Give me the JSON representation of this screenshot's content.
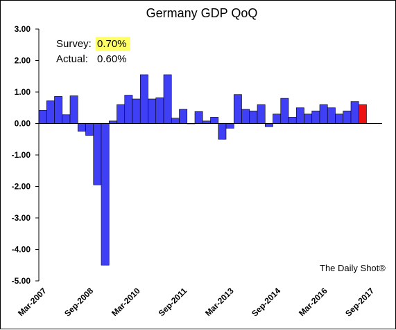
{
  "chart_data": {
    "type": "bar",
    "title": "Germany GDP QoQ",
    "ylim": [
      -5.0,
      3.0
    ],
    "yticks": [
      "3.00",
      "2.00",
      "1.00",
      "0.00",
      "-1.00",
      "-2.00",
      "-3.00",
      "-4.00",
      "-5.00"
    ],
    "ytick_values": [
      3,
      2,
      1,
      0,
      -1,
      -2,
      -3,
      -4,
      -5
    ],
    "xticks": [
      "Mar-2007",
      "Sep-2008",
      "Mar-2010",
      "Sep-2011",
      "Mar-2013",
      "Sep-2014",
      "Mar-2016",
      "Sep-2017"
    ],
    "xtick_quarter_index": [
      0,
      6,
      12,
      18,
      24,
      30,
      36,
      42
    ],
    "quarters_total": 44,
    "series": [
      {
        "values": [
          0.42,
          0.72,
          0.86,
          0.28,
          0.88,
          -0.25,
          -0.38,
          -1.95,
          -4.5,
          0.08,
          0.6,
          0.9,
          0.78,
          1.55,
          0.78,
          0.82,
          1.55,
          0.17,
          0.45,
          0.0,
          0.38,
          0.08,
          0.2,
          -0.5,
          -0.15,
          0.92,
          0.45,
          0.4,
          0.6,
          -0.1,
          0.3,
          0.8,
          0.2,
          0.5,
          0.3,
          0.4,
          0.6,
          0.5,
          0.3,
          0.4,
          0.7,
          0.6
        ],
        "colors": [
          "#3f3ff5",
          "#3f3ff5",
          "#3f3ff5",
          "#3f3ff5",
          "#3f3ff5",
          "#3f3ff5",
          "#3f3ff5",
          "#3f3ff5",
          "#3f3ff5",
          "#3f3ff5",
          "#3f3ff5",
          "#3f3ff5",
          "#3f3ff5",
          "#3f3ff5",
          "#3f3ff5",
          "#3f3ff5",
          "#3f3ff5",
          "#3f3ff5",
          "#3f3ff5",
          "#3f3ff5",
          "#3f3ff5",
          "#3f3ff5",
          "#3f3ff5",
          "#3f3ff5",
          "#3f3ff5",
          "#3f3ff5",
          "#3f3ff5",
          "#3f3ff5",
          "#3f3ff5",
          "#3f3ff5",
          "#3f3ff5",
          "#3f3ff5",
          "#3f3ff5",
          "#3f3ff5",
          "#3f3ff5",
          "#3f3ff5",
          "#3f3ff5",
          "#3f3ff5",
          "#3f3ff5",
          "#3f3ff5",
          "#3f3ff5",
          "#ee1111"
        ]
      }
    ],
    "annotations": {
      "survey_label": "Survey:",
      "survey_value": "0.70%",
      "survey_highlight": "#ffff66",
      "actual_label": "Actual:",
      "actual_value": "0.60%"
    },
    "source": "The Daily Shot®",
    "grid": false
  }
}
